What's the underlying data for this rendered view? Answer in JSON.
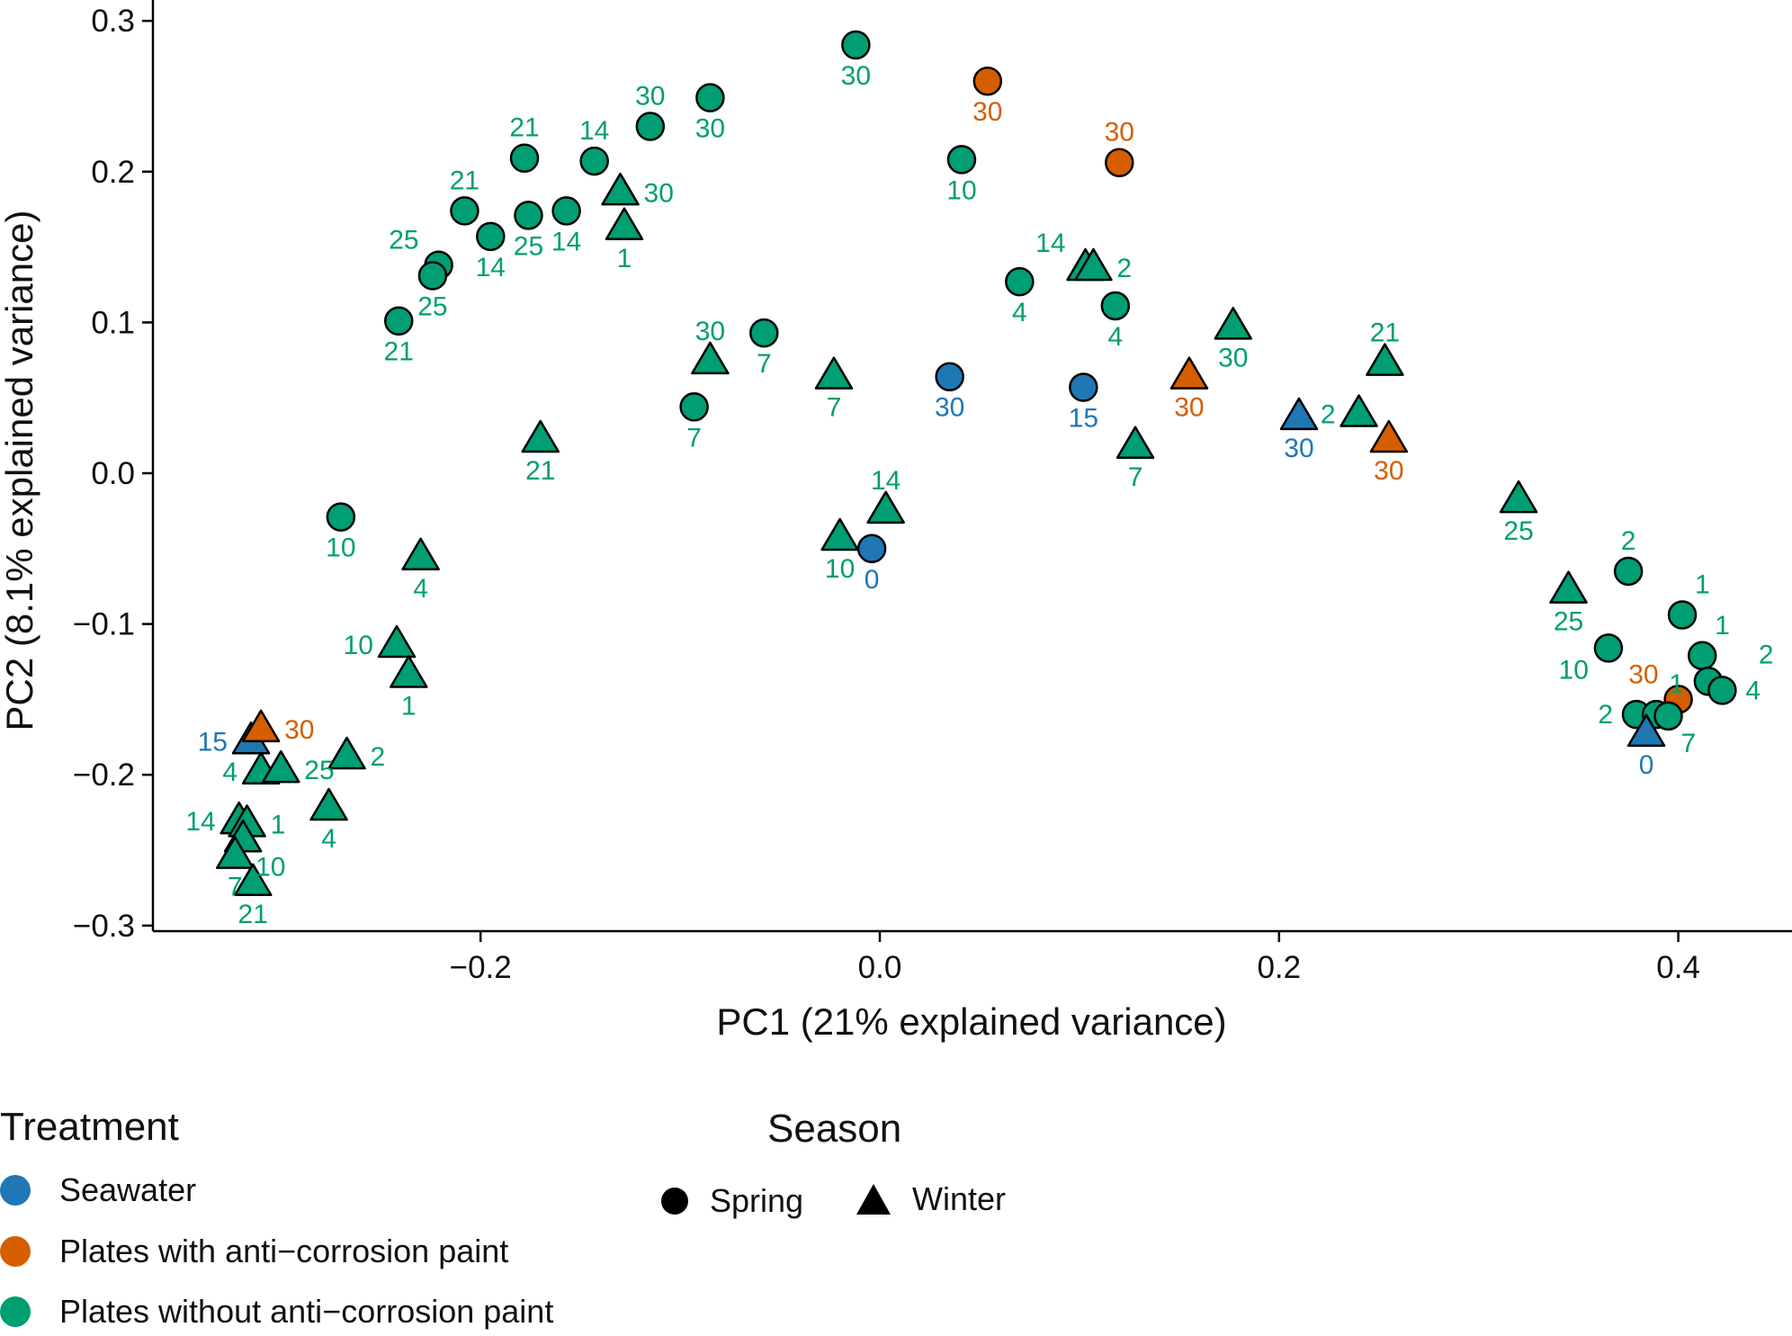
{
  "colors": {
    "seawater": "#1f77b4",
    "paint": "#d55e00",
    "nopaint": "#009e73",
    "outline": "#000000"
  },
  "legend": {
    "treatment_title": "Treatment",
    "treatment_items": [
      {
        "label": "Seawater",
        "key": "seawater"
      },
      {
        "label": "Plates with anti−corrosion paint",
        "key": "paint"
      },
      {
        "label": "Plates without anti−corrosion paint",
        "key": "nopaint"
      }
    ],
    "season_title": "Season",
    "season_items": [
      {
        "label": "Spring",
        "shape": "circle"
      },
      {
        "label": "Winter",
        "shape": "triangle"
      }
    ]
  },
  "chart_data": {
    "type": "scatter",
    "xlabel": "PC1 (21% explained variance)",
    "ylabel": "PC2 (8.1% explained variance)",
    "xlim": [
      -0.37,
      0.43
    ],
    "ylim": [
      -0.31,
      0.31
    ],
    "xticks": [
      -0.2,
      0.0,
      0.2,
      0.4
    ],
    "xtick_labels": [
      "−0.2",
      "0.0",
      "0.2",
      "0.4"
    ],
    "yticks": [
      -0.3,
      -0.2,
      -0.1,
      0.0,
      0.1,
      0.2,
      0.3
    ],
    "ytick_labels": [
      "−0.3",
      "−0.2",
      "−0.1",
      "0.0",
      "0.1",
      "0.2",
      "0.3"
    ],
    "points": [
      {
        "x": -0.012,
        "y": 0.284,
        "t": "nopaint",
        "s": "circle",
        "label": "30",
        "pos": "below"
      },
      {
        "x": -0.085,
        "y": 0.249,
        "t": "nopaint",
        "s": "circle",
        "label": "30",
        "pos": "below"
      },
      {
        "x": -0.115,
        "y": 0.23,
        "t": "nopaint",
        "s": "circle",
        "label": "30",
        "pos": "above"
      },
      {
        "x": -0.143,
        "y": 0.207,
        "t": "nopaint",
        "s": "circle",
        "label": "14",
        "pos": "above"
      },
      {
        "x": -0.178,
        "y": 0.209,
        "t": "nopaint",
        "s": "circle",
        "label": "21",
        "pos": "above"
      },
      {
        "x": -0.176,
        "y": 0.171,
        "t": "nopaint",
        "s": "circle",
        "label": "25",
        "pos": "below"
      },
      {
        "x": -0.157,
        "y": 0.174,
        "t": "nopaint",
        "s": "circle",
        "label": "14",
        "pos": "below"
      },
      {
        "x": -0.208,
        "y": 0.174,
        "t": "nopaint",
        "s": "circle",
        "label": "21",
        "pos": "above"
      },
      {
        "x": -0.195,
        "y": 0.157,
        "t": "nopaint",
        "s": "circle",
        "label": "14",
        "pos": "below"
      },
      {
        "x": -0.221,
        "y": 0.138,
        "t": "nopaint",
        "s": "circle",
        "label": "25",
        "pos": "upleft"
      },
      {
        "x": -0.224,
        "y": 0.131,
        "t": "nopaint",
        "s": "circle",
        "label": "25",
        "pos": "below"
      },
      {
        "x": -0.241,
        "y": 0.101,
        "t": "nopaint",
        "s": "circle",
        "label": "21",
        "pos": "below"
      },
      {
        "x": -0.13,
        "y": 0.186,
        "t": "nopaint",
        "s": "triangle",
        "label": "30",
        "pos": "right"
      },
      {
        "x": -0.128,
        "y": 0.163,
        "t": "nopaint",
        "s": "triangle",
        "label": "1",
        "pos": "below"
      },
      {
        "x": 0.054,
        "y": 0.26,
        "t": "paint",
        "s": "circle",
        "label": "30",
        "pos": "below"
      },
      {
        "x": 0.041,
        "y": 0.208,
        "t": "nopaint",
        "s": "circle",
        "label": "10",
        "pos": "below"
      },
      {
        "x": 0.12,
        "y": 0.206,
        "t": "paint",
        "s": "circle",
        "label": "30",
        "pos": "above"
      },
      {
        "x": 0.07,
        "y": 0.127,
        "t": "nopaint",
        "s": "circle",
        "label": "4",
        "pos": "below"
      },
      {
        "x": 0.103,
        "y": 0.136,
        "t": "nopaint",
        "s": "triangle",
        "label": "14",
        "pos": "upleft"
      },
      {
        "x": 0.107,
        "y": 0.136,
        "t": "nopaint",
        "s": "triangle",
        "label": "2",
        "pos": "right"
      },
      {
        "x": 0.118,
        "y": 0.111,
        "t": "nopaint",
        "s": "circle",
        "label": "4",
        "pos": "below"
      },
      {
        "x": 0.177,
        "y": 0.097,
        "t": "nopaint",
        "s": "triangle",
        "label": "30",
        "pos": "below"
      },
      {
        "x": -0.058,
        "y": 0.093,
        "t": "nopaint",
        "s": "circle",
        "label": "7",
        "pos": "below"
      },
      {
        "x": -0.085,
        "y": 0.074,
        "t": "nopaint",
        "s": "triangle",
        "label": "30",
        "pos": "above"
      },
      {
        "x": -0.023,
        "y": 0.064,
        "t": "nopaint",
        "s": "triangle",
        "label": "7",
        "pos": "below"
      },
      {
        "x": 0.035,
        "y": 0.064,
        "t": "seawater",
        "s": "circle",
        "label": "30",
        "pos": "below"
      },
      {
        "x": 0.102,
        "y": 0.057,
        "t": "seawater",
        "s": "circle",
        "label": "15",
        "pos": "below"
      },
      {
        "x": 0.155,
        "y": 0.064,
        "t": "paint",
        "s": "triangle",
        "label": "30",
        "pos": "below"
      },
      {
        "x": -0.093,
        "y": 0.044,
        "t": "nopaint",
        "s": "circle",
        "label": "7",
        "pos": "below"
      },
      {
        "x": -0.17,
        "y": 0.022,
        "t": "nopaint",
        "s": "triangle",
        "label": "21",
        "pos": "below"
      },
      {
        "x": 0.128,
        "y": 0.018,
        "t": "nopaint",
        "s": "triangle",
        "label": "7",
        "pos": "below"
      },
      {
        "x": 0.21,
        "y": 0.037,
        "t": "seawater",
        "s": "triangle",
        "label": "30",
        "pos": "below"
      },
      {
        "x": 0.24,
        "y": 0.039,
        "t": "nopaint",
        "s": "triangle",
        "label": "2",
        "pos": "left"
      },
      {
        "x": 0.253,
        "y": 0.073,
        "t": "nopaint",
        "s": "triangle",
        "label": "21",
        "pos": "above"
      },
      {
        "x": 0.255,
        "y": 0.022,
        "t": "paint",
        "s": "triangle",
        "label": "30",
        "pos": "below"
      },
      {
        "x": -0.27,
        "y": -0.029,
        "t": "nopaint",
        "s": "circle",
        "label": "10",
        "pos": "below"
      },
      {
        "x": 0.003,
        "y": -0.025,
        "t": "nopaint",
        "s": "triangle",
        "label": "14",
        "pos": "above"
      },
      {
        "x": -0.02,
        "y": -0.043,
        "t": "nopaint",
        "s": "triangle",
        "label": "10",
        "pos": "below"
      },
      {
        "x": -0.004,
        "y": -0.05,
        "t": "seawater",
        "s": "circle",
        "label": "0",
        "pos": "below"
      },
      {
        "x": -0.23,
        "y": -0.056,
        "t": "nopaint",
        "s": "triangle",
        "label": "4",
        "pos": "below"
      },
      {
        "x": 0.32,
        "y": -0.018,
        "t": "nopaint",
        "s": "triangle",
        "label": "25",
        "pos": "below"
      },
      {
        "x": 0.345,
        "y": -0.078,
        "t": "nopaint",
        "s": "triangle",
        "label": "25",
        "pos": "below"
      },
      {
        "x": 0.375,
        "y": -0.065,
        "t": "nopaint",
        "s": "circle",
        "label": "2",
        "pos": "above"
      },
      {
        "x": 0.402,
        "y": -0.094,
        "t": "nopaint",
        "s": "circle",
        "label": "1",
        "pos": "upright"
      },
      {
        "x": 0.412,
        "y": -0.121,
        "t": "nopaint",
        "s": "circle",
        "label": "1",
        "pos": "upright"
      },
      {
        "x": 0.365,
        "y": -0.116,
        "t": "nopaint",
        "s": "circle",
        "label": "10",
        "pos": "downleft"
      },
      {
        "x": 0.4,
        "y": -0.15,
        "t": "paint",
        "s": "circle",
        "label": "30",
        "pos": "upleft"
      },
      {
        "x": 0.415,
        "y": -0.138,
        "t": "nopaint",
        "s": "circle",
        "label": "2",
        "pos": "farright"
      },
      {
        "x": 0.422,
        "y": -0.144,
        "t": "nopaint",
        "s": "circle",
        "label": "4",
        "pos": "right"
      },
      {
        "x": 0.379,
        "y": -0.16,
        "t": "nopaint",
        "s": "circle",
        "label": "2",
        "pos": "left"
      },
      {
        "x": 0.389,
        "y": -0.16,
        "t": "nopaint",
        "s": "circle",
        "label": "1",
        "pos": "upright"
      },
      {
        "x": 0.395,
        "y": -0.161,
        "t": "nopaint",
        "s": "circle",
        "label": "7",
        "pos": "downright"
      },
      {
        "x": 0.384,
        "y": -0.173,
        "t": "seawater",
        "s": "triangle",
        "label": "0",
        "pos": "below"
      },
      {
        "x": -0.242,
        "y": -0.114,
        "t": "nopaint",
        "s": "triangle",
        "label": "10",
        "pos": "left"
      },
      {
        "x": -0.236,
        "y": -0.134,
        "t": "nopaint",
        "s": "triangle",
        "label": "1",
        "pos": "below"
      },
      {
        "x": -0.267,
        "y": -0.188,
        "t": "nopaint",
        "s": "triangle",
        "label": "2",
        "pos": "right"
      },
      {
        "x": -0.276,
        "y": -0.222,
        "t": "nopaint",
        "s": "triangle",
        "label": "4",
        "pos": "below"
      },
      {
        "x": -0.315,
        "y": -0.178,
        "t": "seawater",
        "s": "triangle",
        "label": "15",
        "pos": "left"
      },
      {
        "x": -0.31,
        "y": -0.17,
        "t": "paint",
        "s": "triangle",
        "label": "30",
        "pos": "right"
      },
      {
        "x": -0.31,
        "y": -0.198,
        "t": "nopaint",
        "s": "triangle",
        "label": "4",
        "pos": "left"
      },
      {
        "x": -0.3,
        "y": -0.197,
        "t": "nopaint",
        "s": "triangle",
        "label": "25",
        "pos": "right"
      },
      {
        "x": -0.321,
        "y": -0.231,
        "t": "nopaint",
        "s": "triangle",
        "label": "14",
        "pos": "left"
      },
      {
        "x": -0.317,
        "y": -0.233,
        "t": "nopaint",
        "s": "triangle",
        "label": "1",
        "pos": "right"
      },
      {
        "x": -0.319,
        "y": -0.243,
        "t": "nopaint",
        "s": "triangle",
        "label": "10",
        "pos": "downright"
      },
      {
        "x": -0.323,
        "y": -0.254,
        "t": "nopaint",
        "s": "triangle",
        "label": "7",
        "pos": "below"
      },
      {
        "x": -0.314,
        "y": -0.272,
        "t": "nopaint",
        "s": "triangle",
        "label": "21",
        "pos": "below"
      }
    ]
  }
}
